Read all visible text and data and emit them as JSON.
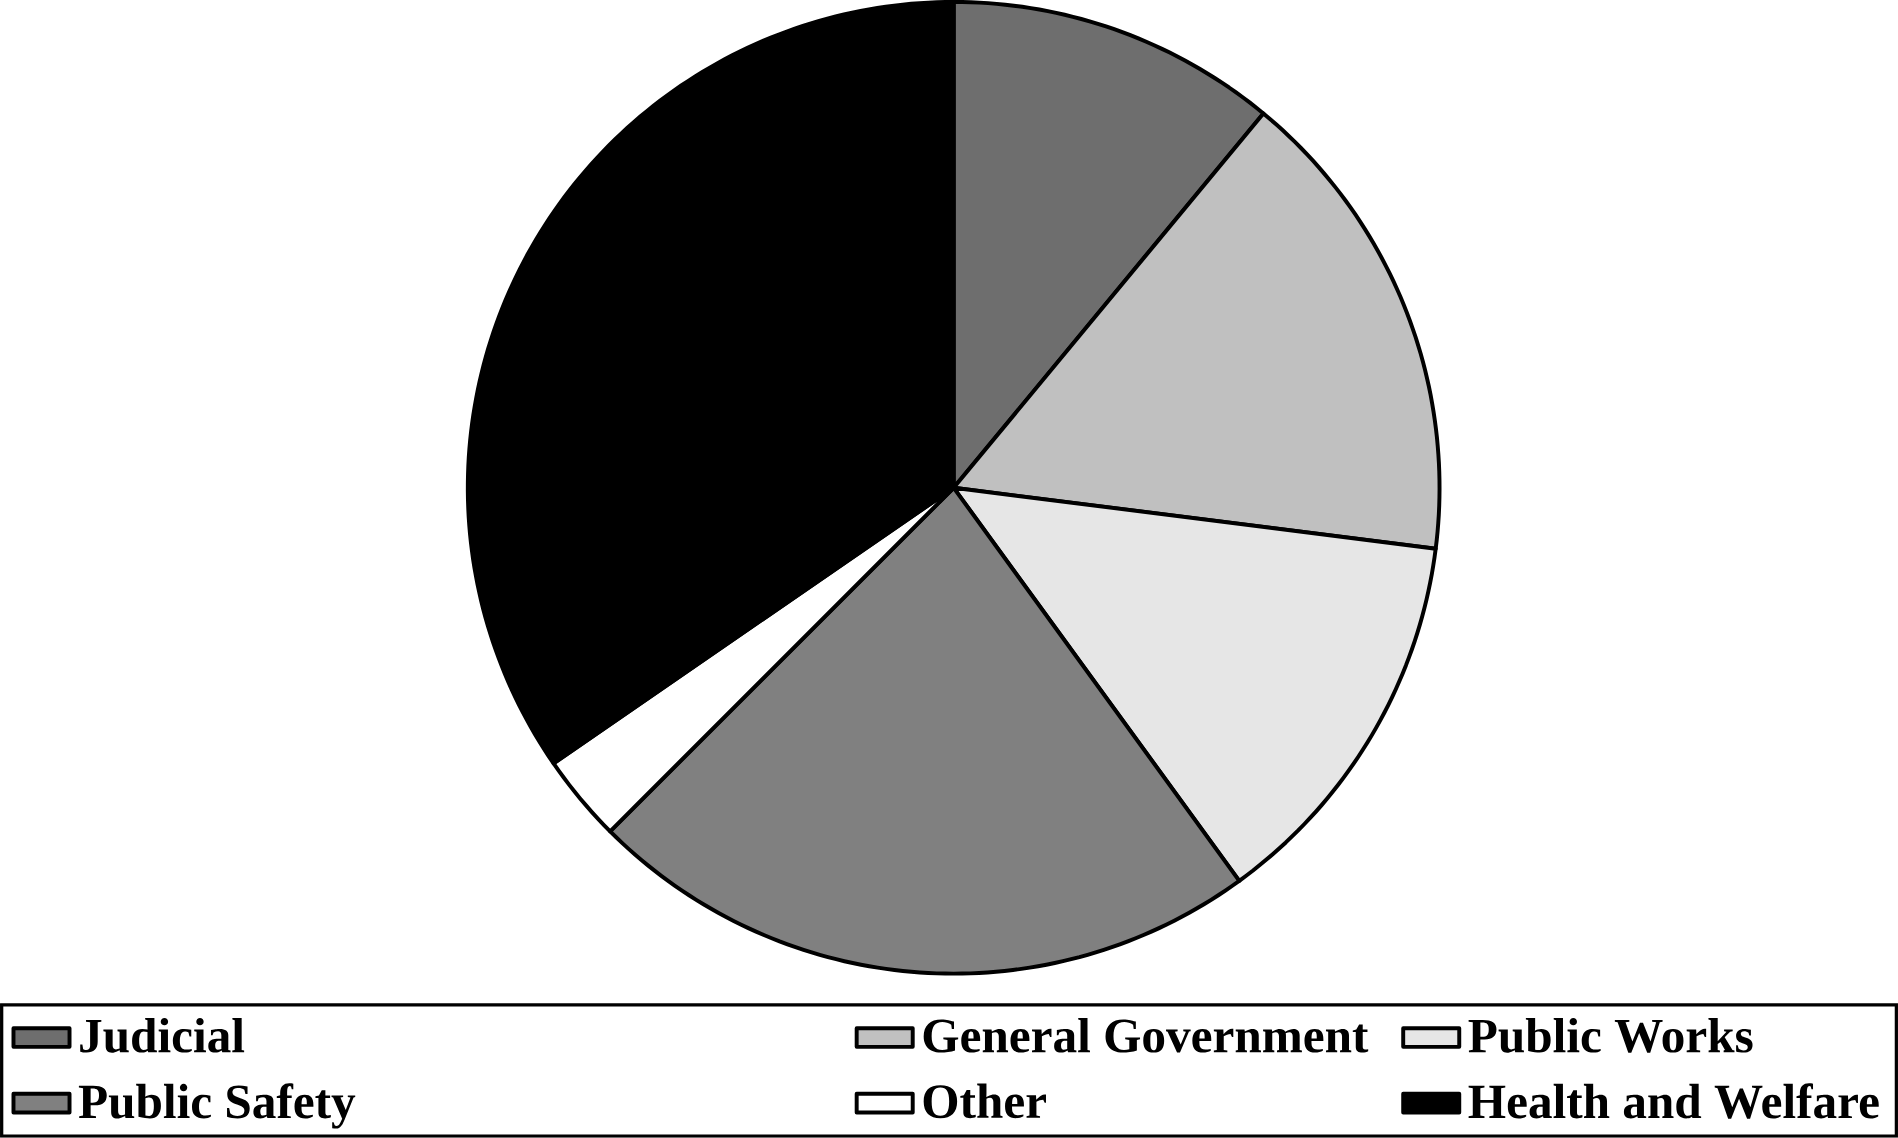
{
  "chart_data": {
    "type": "pie",
    "categories": [
      "Judicial",
      "General Government",
      "Public Works",
      "Public Safety",
      "Other",
      "Health and Welfare"
    ],
    "values": [
      11,
      16,
      13,
      22.5,
      2.9,
      34.6
    ],
    "colors": [
      "#6e6e6e",
      "#c0c0c0",
      "#e6e6e6",
      "#808080",
      "#ffffff",
      "#000000"
    ],
    "legend": "bottom"
  }
}
